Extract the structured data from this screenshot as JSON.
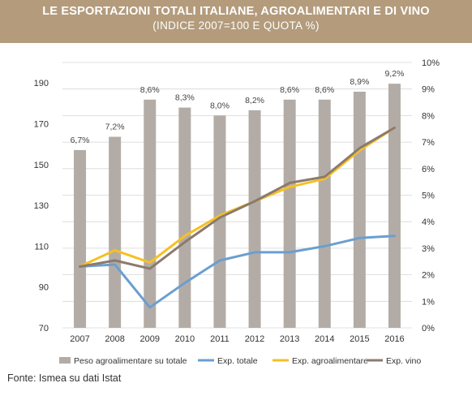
{
  "header": {
    "title": "LE ESPORTAZIONI TOTALI ITALIANE, AGROALIMENTARI E DI VINO",
    "subtitle": "(INDICE 2007=100 E QUOTA %)"
  },
  "source": "Fonte: Ismea su dati Istat",
  "colors": {
    "header_bg": "#b39b7c",
    "bars": "#b3aca6",
    "exp_totale": "#6a9fd0",
    "exp_agro": "#f6c021",
    "exp_vino": "#8c7a6d",
    "grid": "#d6d6d6"
  },
  "chart_data": {
    "type": "bar",
    "categories": [
      "2007",
      "2008",
      "2009",
      "2010",
      "2011",
      "2012",
      "2013",
      "2014",
      "2015",
      "2016"
    ],
    "bar_series": {
      "name": "Peso agroalimentare su totale",
      "axis": "right",
      "values": [
        6.7,
        7.2,
        8.6,
        8.3,
        8.0,
        8.2,
        8.6,
        8.6,
        8.9,
        9.2
      ],
      "labels": [
        "6,7%",
        "7,2%",
        "8,6%",
        "8,3%",
        "8,0%",
        "8,2%",
        "8,6%",
        "8,6%",
        "8,9%",
        "9,2%"
      ]
    },
    "series": [
      {
        "name": "Exp. totale",
        "type": "line",
        "axis": "left",
        "values": [
          100,
          101,
          80,
          92,
          103,
          107,
          107,
          110,
          114,
          115
        ]
      },
      {
        "name": "Exp. agroalimentare",
        "type": "line",
        "axis": "left",
        "values": [
          100,
          108,
          102,
          115,
          125,
          132,
          139,
          143,
          157,
          168
        ]
      },
      {
        "name": "Exp. vino",
        "type": "line",
        "axis": "left",
        "values": [
          100,
          103,
          99,
          112,
          124,
          132,
          141,
          144,
          158,
          168
        ]
      }
    ],
    "y_left": {
      "ylim": [
        70,
        200
      ],
      "ticks": [
        70,
        90,
        110,
        130,
        150,
        170,
        190
      ]
    },
    "y_right": {
      "ylim": [
        0,
        10
      ],
      "ticks": [
        "0%",
        "1%",
        "2%",
        "3%",
        "4%",
        "5%",
        "6%",
        "7%",
        "8%",
        "9%",
        "10%"
      ]
    },
    "grid": true,
    "legend_position": "bottom"
  }
}
